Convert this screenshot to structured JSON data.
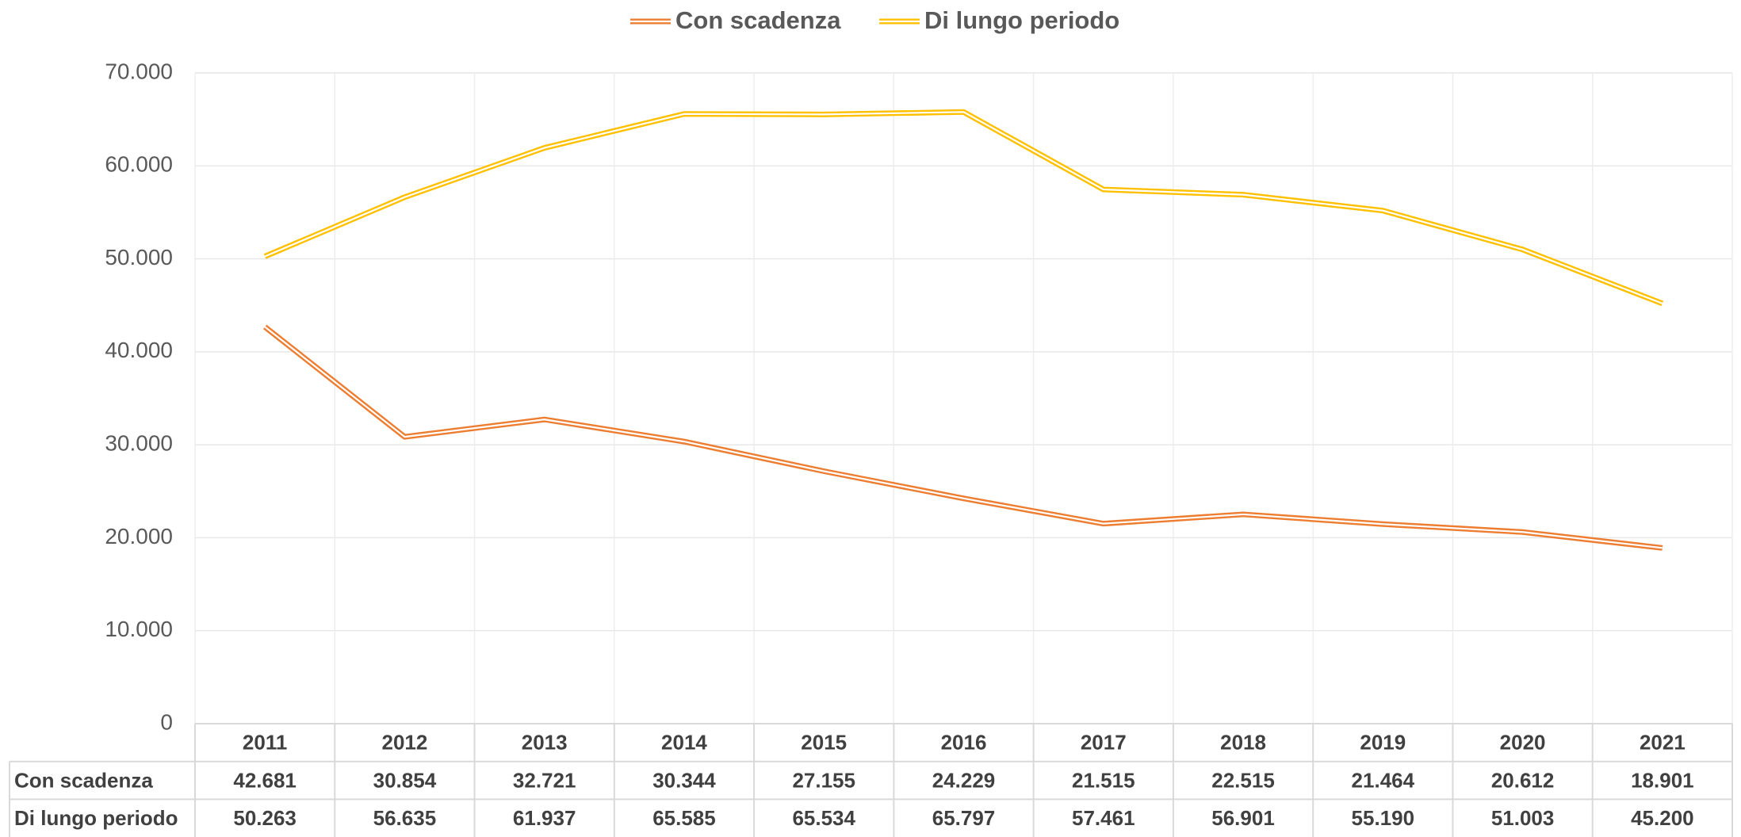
{
  "chart_data": {
    "type": "line",
    "categories": [
      "2011",
      "2012",
      "2013",
      "2014",
      "2015",
      "2016",
      "2017",
      "2018",
      "2019",
      "2020",
      "2021"
    ],
    "series": [
      {
        "name": "Con scadenza",
        "color": "#ED7D31",
        "values": [
          42681,
          30854,
          32721,
          30344,
          27155,
          24229,
          21515,
          22515,
          21464,
          20612,
          18901
        ],
        "value_labels": [
          "42.681",
          "30.854",
          "32.721",
          "30.344",
          "27.155",
          "24.229",
          "21.515",
          "22.515",
          "21.464",
          "20.612",
          "18.901"
        ]
      },
      {
        "name": "Di lungo periodo",
        "color": "#FFC000",
        "values": [
          50263,
          56635,
          61937,
          65585,
          65534,
          65797,
          57461,
          56901,
          55190,
          51003,
          45200
        ],
        "value_labels": [
          "50.263",
          "56.635",
          "61.937",
          "65.585",
          "65.534",
          "65.797",
          "57.461",
          "56.901",
          "55.190",
          "51.003",
          "45.200"
        ]
      }
    ],
    "ylim": [
      0,
      70000
    ],
    "yticks": [
      0,
      {
        "value": 10000,
        "label": "10.000"
      },
      {
        "value": 20000,
        "label": "20.000"
      },
      {
        "value": 30000,
        "label": "30.000"
      },
      {
        "value": 40000,
        "label": "40.000"
      },
      {
        "value": 50000,
        "label": "50.000"
      },
      {
        "value": 60000,
        "label": "60.000"
      },
      {
        "value": 70000,
        "label": "70.000"
      }
    ],
    "grid": true,
    "legend": "top"
  }
}
